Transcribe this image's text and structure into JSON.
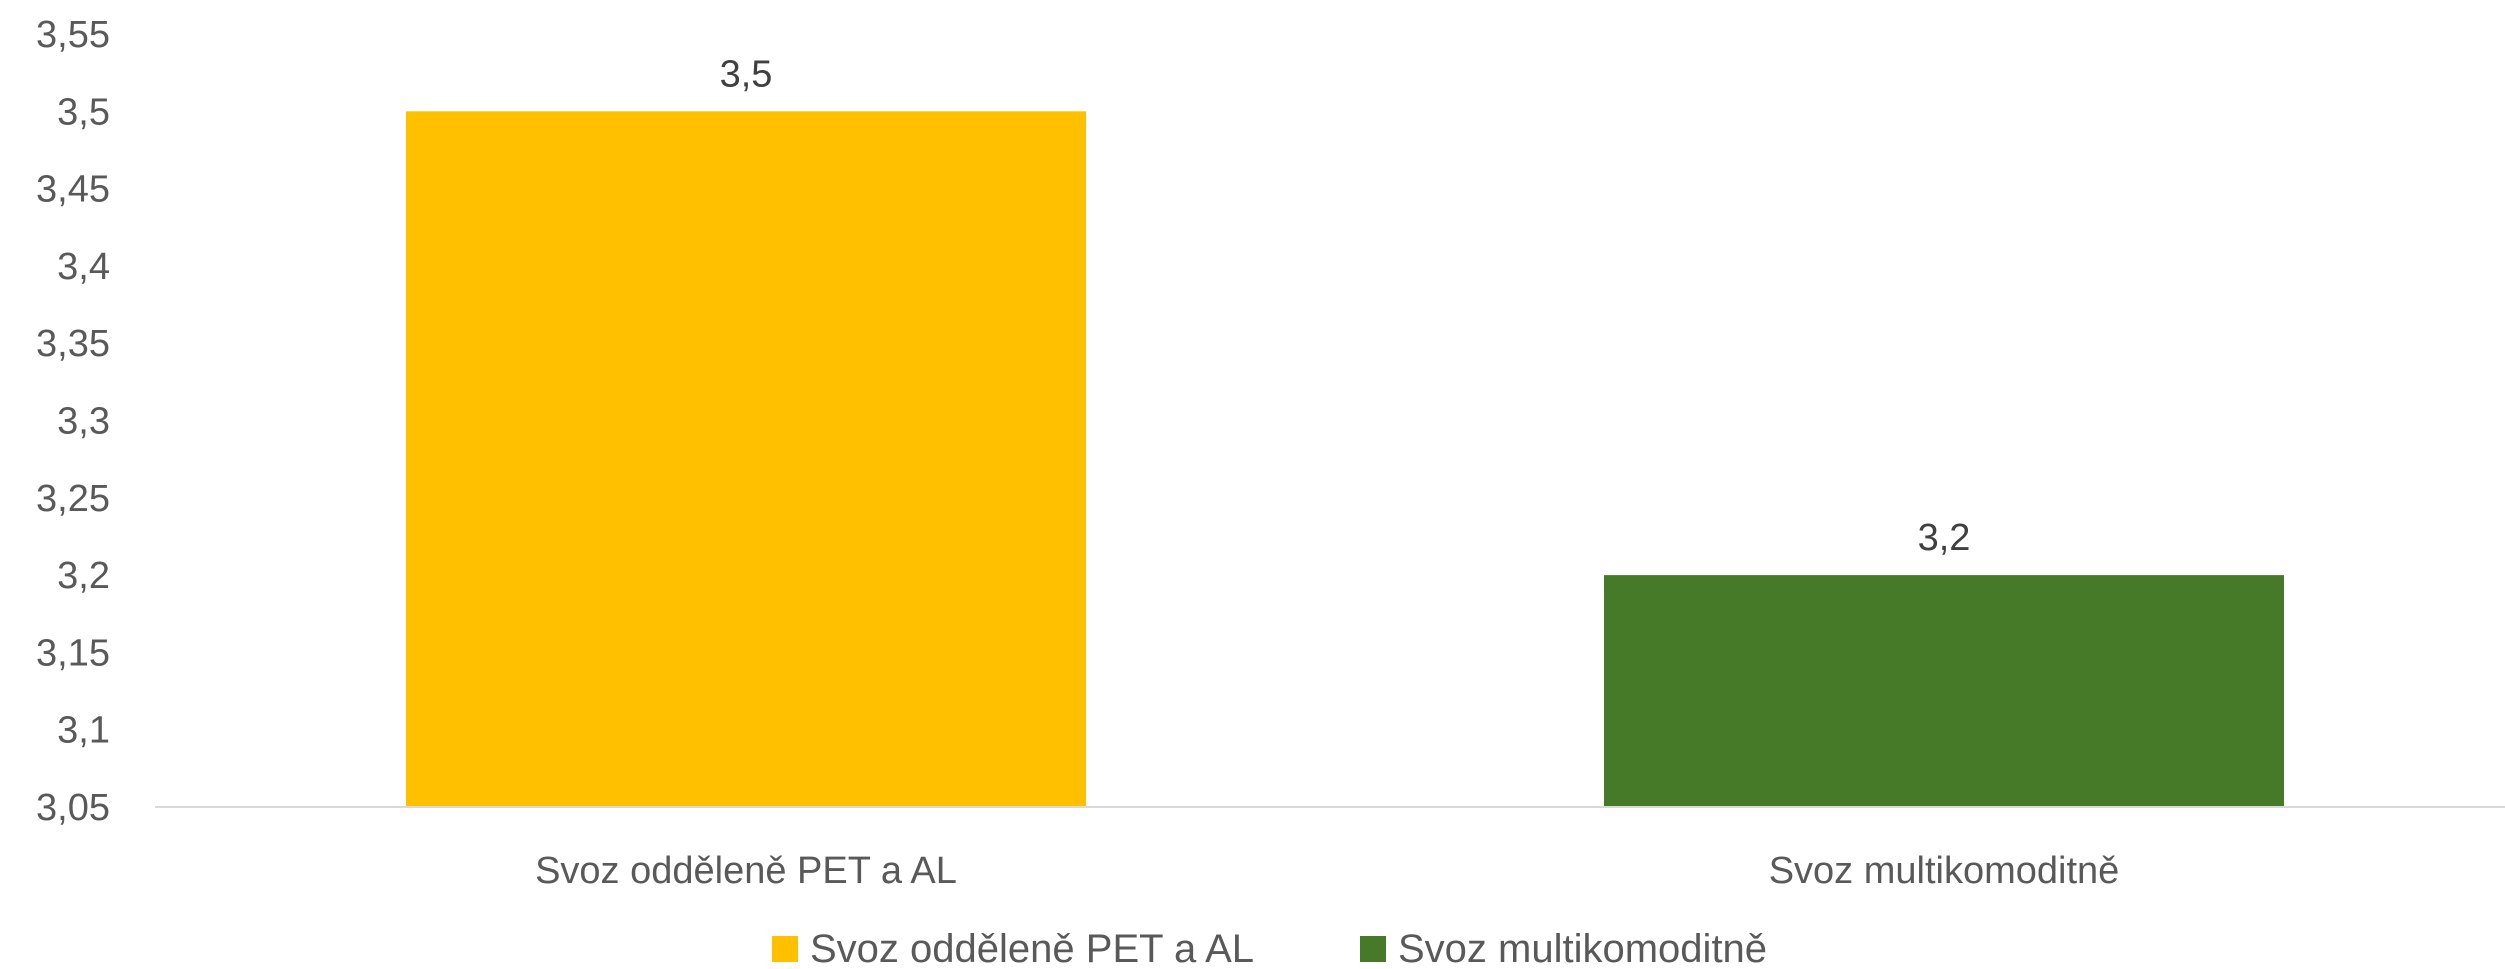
{
  "chart_data": {
    "type": "bar",
    "categories": [
      "Svoz odděleně PET a AL",
      "Svoz multikomoditně"
    ],
    "values": [
      3.5,
      3.2
    ],
    "data_labels": [
      "3,5",
      "3,2"
    ],
    "colors": [
      "#FFC000",
      "#467A29"
    ],
    "ylim": [
      3.05,
      3.55
    ],
    "yticks": [
      3.05,
      3.1,
      3.15,
      3.2,
      3.25,
      3.3,
      3.35,
      3.4,
      3.45,
      3.5,
      3.55
    ],
    "ytick_labels": [
      "3,05",
      "3,1",
      "3,15",
      "3,2",
      "3,25",
      "3,3",
      "3,35",
      "3,4",
      "3,45",
      "3,5",
      "3,55"
    ],
    "grid": false,
    "legend": {
      "placement": "bottom",
      "entries": [
        "Svoz odděleně PET a AL",
        "Svoz multikomoditně"
      ]
    },
    "title": "",
    "xlabel": "",
    "ylabel": ""
  }
}
